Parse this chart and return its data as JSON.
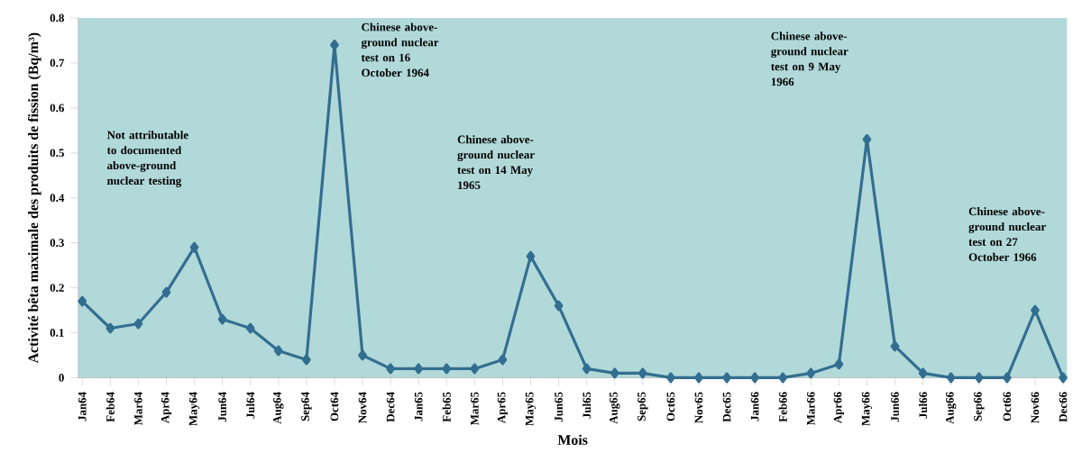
{
  "chart_data": {
    "type": "line",
    "xlabel": "Mois",
    "ylabel": "Activité bêta maximale des produits de fission (Bq/m³)",
    "categories": [
      "Jan64",
      "Feb64",
      "Mar64",
      "Apr64",
      "May64",
      "Jun64",
      "Jul64",
      "Aug64",
      "Sep64",
      "Oct64",
      "Nov64",
      "Dec64",
      "Jan65",
      "Feb65",
      "Mar65",
      "Apr65",
      "May65",
      "Jun65",
      "Jul65",
      "Aug65",
      "Sep65",
      "Oct65",
      "Nov65",
      "Dec65",
      "Jan66",
      "Feb66",
      "Mar66",
      "Apr66",
      "May66",
      "Jun66",
      "Jul66",
      "Aug66",
      "Sep66",
      "Oct66",
      "Nov66",
      "Dec66"
    ],
    "series": [
      {
        "color": "#336e91",
        "values": [
          0.17,
          0.11,
          0.12,
          0.19,
          0.29,
          0.13,
          0.11,
          0.06,
          0.04,
          0.74,
          0.05,
          0.02,
          0.02,
          0.02,
          0.02,
          0.04,
          0.27,
          0.16,
          0.02,
          0.01,
          0.01,
          0.0,
          0.0,
          0.0,
          0.0,
          0.0,
          0.01,
          0.03,
          0.53,
          0.07,
          0.01,
          0.0,
          0.0,
          0.0,
          0.15,
          0.0
        ]
      }
    ],
    "ylim": [
      0,
      0.8
    ],
    "yticks": [
      0,
      0.1,
      0.2,
      0.3,
      0.4,
      0.5,
      0.6,
      0.7,
      0.8
    ],
    "marker": "diamond",
    "line_style": "solid",
    "annotations": [
      "Not attributable to documented above-ground nuclear testing",
      "Chinese above-ground nuclear test on 16 October 1964",
      "Chinese above-ground nuclear test on 14 May 1965",
      "Chinese above-ground nuclear test on 9 May 1966",
      "Chinese above-ground nuclear test on 27 October 1966"
    ]
  }
}
